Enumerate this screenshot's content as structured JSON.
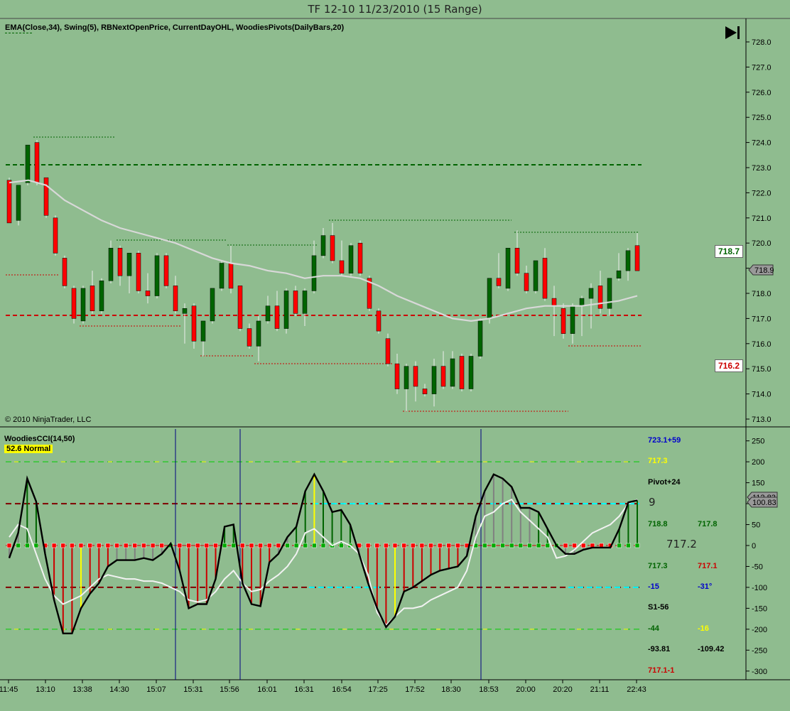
{
  "window": {
    "title": "TF 12-10  11/23/2010 (15 Range)"
  },
  "price_panel": {
    "indicators": "EMA(Close,34), Swing(5), RBNextOpenPrice, CurrentDayOHL, WoodiesPivots(DailyBars,20)",
    "copyright": "© 2010 NinjaTrader, LLC",
    "axis_ticks": [
      "728.0",
      "727.0",
      "726.0",
      "725.0",
      "724.0",
      "723.0",
      "722.0",
      "721.0",
      "720.0",
      "719.0",
      "718.0",
      "717.0",
      "716.0",
      "715.0",
      "714.0",
      "713.0"
    ],
    "upper_box": "718.7",
    "last_box": "718.9",
    "lower_box": "716.2",
    "colors": {
      "background": "#8fbc8f",
      "up": "#006400",
      "down": "#ff0000",
      "ema": "#d3d3d3",
      "high_line": "#006400",
      "low_line": "#cc0000"
    }
  },
  "cci_panel": {
    "label": "WoodiesCCI(14,50)",
    "badge": "52.6 Normal",
    "axis_ticks": [
      "250",
      "200",
      "150",
      "100",
      "50",
      "0",
      "-50",
      "-100",
      "-150",
      "-200",
      "-250",
      "-300"
    ],
    "value_box_top": "112.83",
    "value_box": "100.83",
    "pivot_texts": {
      "r_top": "723.1+59",
      "r1": "717.3",
      "pivot": "Pivot+24",
      "nine": "9",
      "a": "718.8",
      "b": "717.8",
      "center": "717.2",
      "c": "717.3",
      "d": "717.1",
      "e": "-15",
      "f": "-31°",
      "s1": "S1-56",
      "g": "-44",
      "h": "-16",
      "i": "-93.81",
      "j": "-109.42",
      "k": "717.1-1"
    }
  },
  "time_axis": [
    "11:45",
    "13:10",
    "13:38",
    "14:30",
    "15:07",
    "15:31",
    "15:56",
    "16:01",
    "16:31",
    "16:54",
    "17:25",
    "17:52",
    "18:30",
    "18:53",
    "20:00",
    "20:20",
    "21:11",
    "22:43"
  ]
}
